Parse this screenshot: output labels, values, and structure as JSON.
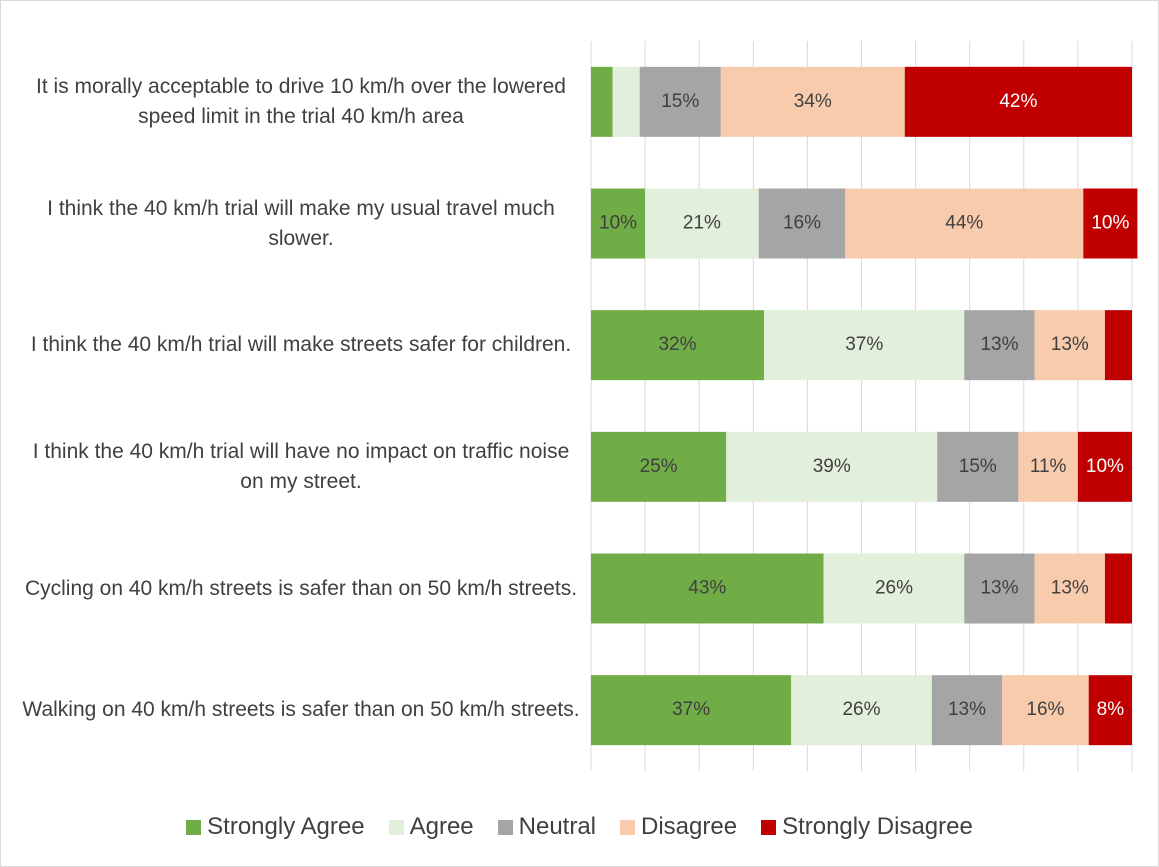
{
  "chart_data": {
    "type": "stacked-bar-horizontal",
    "categories": [
      "It is morally acceptable to drive 10 km/h over the lowered speed limit in the trial 40 km/h area",
      "I think the 40 km/h trial will make my usual travel much slower.",
      "I think the 40 km/h trial will make streets safer for children.",
      "I think the 40 km/h trial will have no impact on traffic noise on my street.",
      "Cycling on 40 km/h streets is safer than on 50 km/h streets.",
      "Walking on 40 km/h streets is safer than on 50 km/h streets."
    ],
    "series": [
      {
        "name": "Strongly Agree",
        "color": "#70ad47",
        "values": [
          4,
          10,
          32,
          25,
          43,
          37
        ],
        "value_labels": [
          null,
          "10%",
          "32%",
          "25%",
          "43%",
          "37%"
        ]
      },
      {
        "name": "Agree",
        "color": "#e2efda",
        "values": [
          5,
          21,
          37,
          39,
          26,
          26
        ],
        "value_labels": [
          null,
          "21%",
          "37%",
          "39%",
          "26%",
          "26%"
        ]
      },
      {
        "name": "Neutral",
        "color": "#a5a5a5",
        "values": [
          15,
          16,
          13,
          15,
          13,
          13
        ],
        "value_labels": [
          "15%",
          "16%",
          "13%",
          "15%",
          "13%",
          "13%"
        ]
      },
      {
        "name": "Disagree",
        "color": "#f8cbad",
        "values": [
          34,
          44,
          13,
          11,
          13,
          16
        ],
        "value_labels": [
          "34%",
          "44%",
          "13%",
          "11%",
          "13%",
          "16%"
        ]
      },
      {
        "name": "Strongly Disagree",
        "color": "#c00000",
        "values": [
          42,
          10,
          5,
          10,
          5,
          8
        ],
        "value_labels": [
          "42%",
          "10%",
          null,
          "10%",
          null,
          "8%"
        ]
      }
    ],
    "xlim": [
      0,
      100
    ],
    "xticks": [
      0,
      10,
      20,
      30,
      40,
      50,
      60,
      70,
      80,
      90,
      100
    ],
    "grid": true,
    "legend": "bottom"
  }
}
